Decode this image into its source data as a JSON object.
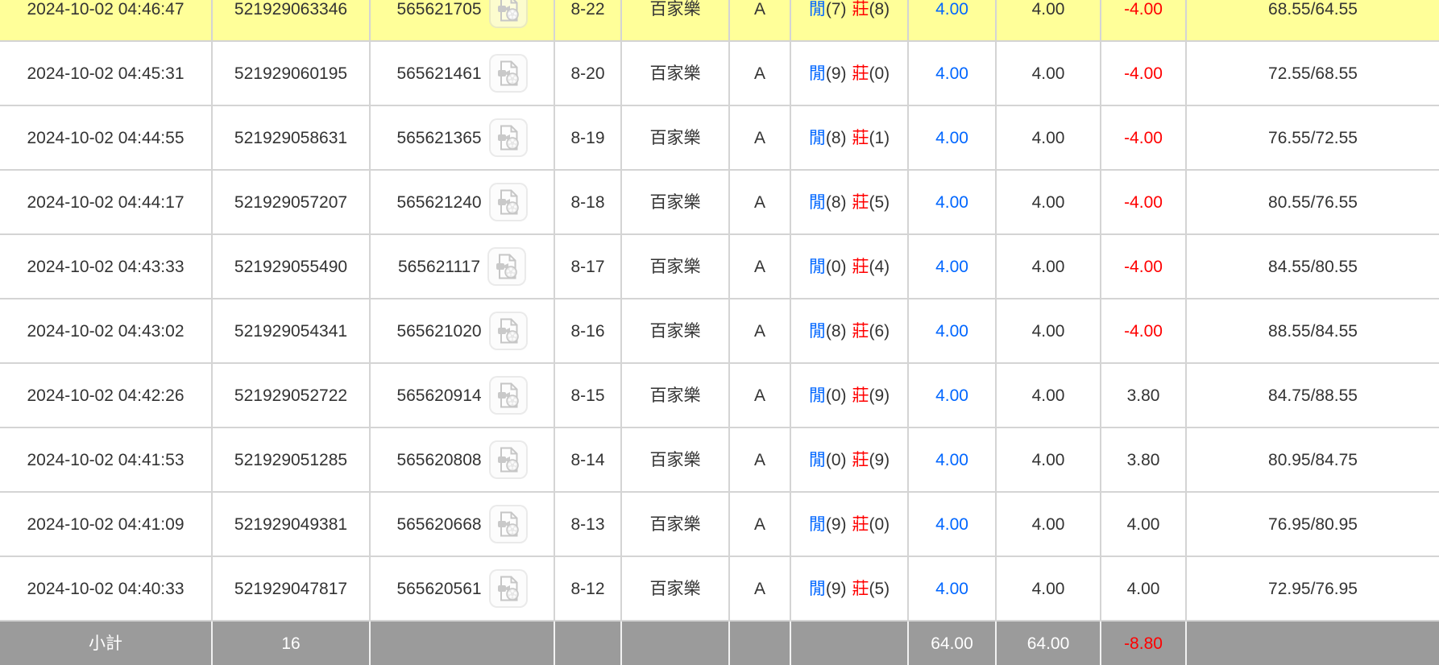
{
  "colors": {
    "highlight_row": "#ffff99",
    "summary_background": "#9b9b9b",
    "bet_amount_blue": "#0066ff",
    "loss_red": "#ff0000",
    "grid_border": "#d4d4d4",
    "body_text": "#333333"
  },
  "icons": {
    "video": "video-replay-file-icon"
  },
  "table": {
    "rows": [
      {
        "time": "2024-10-02 04:46:47",
        "bet_id": "521929063346",
        "round_id": "565621705",
        "round": "8-22",
        "game": "百家樂",
        "table_code": "A",
        "result": {
          "player_label": "閒",
          "player_score": "(7)",
          "banker_label": "莊",
          "banker_score": "(8)"
        },
        "bet": "4.00",
        "valid_bet": "4.00",
        "win_loss": "-4.00",
        "balance": "68.55/64.55",
        "highlighted": true
      },
      {
        "time": "2024-10-02 04:45:31",
        "bet_id": "521929060195",
        "round_id": "565621461",
        "round": "8-20",
        "game": "百家樂",
        "table_code": "A",
        "result": {
          "player_label": "閒",
          "player_score": "(9)",
          "banker_label": "莊",
          "banker_score": "(0)"
        },
        "bet": "4.00",
        "valid_bet": "4.00",
        "win_loss": "-4.00",
        "balance": "72.55/68.55",
        "highlighted": false
      },
      {
        "time": "2024-10-02 04:44:55",
        "bet_id": "521929058631",
        "round_id": "565621365",
        "round": "8-19",
        "game": "百家樂",
        "table_code": "A",
        "result": {
          "player_label": "閒",
          "player_score": "(8)",
          "banker_label": "莊",
          "banker_score": "(1)"
        },
        "bet": "4.00",
        "valid_bet": "4.00",
        "win_loss": "-4.00",
        "balance": "76.55/72.55",
        "highlighted": false
      },
      {
        "time": "2024-10-02 04:44:17",
        "bet_id": "521929057207",
        "round_id": "565621240",
        "round": "8-18",
        "game": "百家樂",
        "table_code": "A",
        "result": {
          "player_label": "閒",
          "player_score": "(8)",
          "banker_label": "莊",
          "banker_score": "(5)"
        },
        "bet": "4.00",
        "valid_bet": "4.00",
        "win_loss": "-4.00",
        "balance": "80.55/76.55",
        "highlighted": false
      },
      {
        "time": "2024-10-02 04:43:33",
        "bet_id": "521929055490",
        "round_id": "565621117",
        "round": "8-17",
        "game": "百家樂",
        "table_code": "A",
        "result": {
          "player_label": "閒",
          "player_score": "(0)",
          "banker_label": "莊",
          "banker_score": "(4)"
        },
        "bet": "4.00",
        "valid_bet": "4.00",
        "win_loss": "-4.00",
        "balance": "84.55/80.55",
        "highlighted": false
      },
      {
        "time": "2024-10-02 04:43:02",
        "bet_id": "521929054341",
        "round_id": "565621020",
        "round": "8-16",
        "game": "百家樂",
        "table_code": "A",
        "result": {
          "player_label": "閒",
          "player_score": "(8)",
          "banker_label": "莊",
          "banker_score": "(6)"
        },
        "bet": "4.00",
        "valid_bet": "4.00",
        "win_loss": "-4.00",
        "balance": "88.55/84.55",
        "highlighted": false
      },
      {
        "time": "2024-10-02 04:42:26",
        "bet_id": "521929052722",
        "round_id": "565620914",
        "round": "8-15",
        "game": "百家樂",
        "table_code": "A",
        "result": {
          "player_label": "閒",
          "player_score": "(0)",
          "banker_label": "莊",
          "banker_score": "(9)"
        },
        "bet": "4.00",
        "valid_bet": "4.00",
        "win_loss": "3.80",
        "balance": "84.75/88.55",
        "highlighted": false
      },
      {
        "time": "2024-10-02 04:41:53",
        "bet_id": "521929051285",
        "round_id": "565620808",
        "round": "8-14",
        "game": "百家樂",
        "table_code": "A",
        "result": {
          "player_label": "閒",
          "player_score": "(0)",
          "banker_label": "莊",
          "banker_score": "(9)"
        },
        "bet": "4.00",
        "valid_bet": "4.00",
        "win_loss": "3.80",
        "balance": "80.95/84.75",
        "highlighted": false
      },
      {
        "time": "2024-10-02 04:41:09",
        "bet_id": "521929049381",
        "round_id": "565620668",
        "round": "8-13",
        "game": "百家樂",
        "table_code": "A",
        "result": {
          "player_label": "閒",
          "player_score": "(9)",
          "banker_label": "莊",
          "banker_score": "(0)"
        },
        "bet": "4.00",
        "valid_bet": "4.00",
        "win_loss": "4.00",
        "balance": "76.95/80.95",
        "highlighted": false
      },
      {
        "time": "2024-10-02 04:40:33",
        "bet_id": "521929047817",
        "round_id": "565620561",
        "round": "8-12",
        "game": "百家樂",
        "table_code": "A",
        "result": {
          "player_label": "閒",
          "player_score": "(9)",
          "banker_label": "莊",
          "banker_score": "(5)"
        },
        "bet": "4.00",
        "valid_bet": "4.00",
        "win_loss": "4.00",
        "balance": "72.95/76.95",
        "highlighted": false
      }
    ],
    "summary": {
      "label": "小計",
      "count": "16",
      "bet_total": "64.00",
      "valid_bet_total": "64.00",
      "win_loss_total": "-8.80"
    }
  }
}
